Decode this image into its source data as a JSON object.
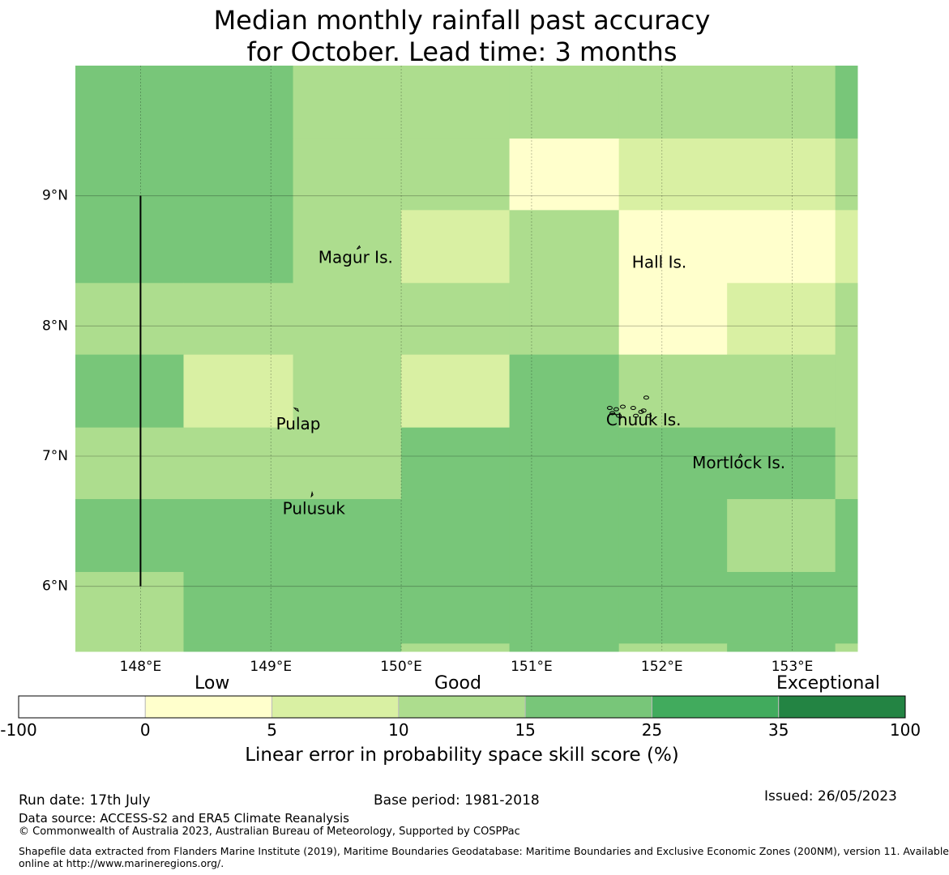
{
  "title_line1": "Median monthly rainfall past accuracy",
  "title_line2": "for October. Lead time: 3 months",
  "lat_ticks": [
    {
      "label": "9°N",
      "value": 9
    },
    {
      "label": "8°N",
      "value": 8
    },
    {
      "label": "7°N",
      "value": 7
    },
    {
      "label": "6°N",
      "value": 6
    }
  ],
  "lon_ticks": [
    {
      "label": "148°E",
      "value": 148
    },
    {
      "label": "149°E",
      "value": 149
    },
    {
      "label": "150°E",
      "value": 150
    },
    {
      "label": "151°E",
      "value": 151
    },
    {
      "label": "152°E",
      "value": 152
    },
    {
      "label": "153°E",
      "value": 153
    }
  ],
  "places": [
    {
      "name": "Magur Is.",
      "lon": 149.65,
      "lat": 8.52
    },
    {
      "name": "Hall Is.",
      "lon": 151.98,
      "lat": 8.48
    },
    {
      "name": "Pulap",
      "lon": 149.21,
      "lat": 7.24
    },
    {
      "name": "Chuuk Is.",
      "lon": 151.86,
      "lat": 7.27
    },
    {
      "name": "Mortlock Is.",
      "lon": 152.59,
      "lat": 6.94
    },
    {
      "name": "Pulusuk",
      "lon": 149.33,
      "lat": 6.59
    }
  ],
  "colors": {
    "bin_m100_0": "#ffffff",
    "bin_0_5": "#ffffcc",
    "bin_5_10": "#d9f0a3",
    "bin_10_15": "#addd8e",
    "bin_15_25": "#78c679",
    "bin_25_35": "#41ab5d",
    "bin_35_100": "#238443"
  },
  "grid": {
    "lon_edges": [
      147.5,
      148.33,
      149.17,
      150.0,
      150.83,
      151.67,
      152.5,
      153.33,
      153.5
    ],
    "lat_edges": [
      10.0,
      9.44,
      8.89,
      8.33,
      7.78,
      7.22,
      6.67,
      6.11,
      5.56,
      5.5
    ],
    "cells": [
      [
        "bin_15_25",
        "bin_15_25",
        "bin_10_15",
        "bin_10_15",
        "bin_10_15",
        "bin_10_15",
        "bin_10_15",
        "bin_15_25"
      ],
      [
        "bin_15_25",
        "bin_15_25",
        "bin_10_15",
        "bin_10_15",
        "bin_0_5",
        "bin_5_10",
        "bin_5_10",
        "bin_10_15"
      ],
      [
        "bin_15_25",
        "bin_15_25",
        "bin_10_15",
        "bin_5_10",
        "bin_10_15",
        "bin_0_5",
        "bin_0_5",
        "bin_5_10"
      ],
      [
        "bin_10_15",
        "bin_10_15",
        "bin_10_15",
        "bin_10_15",
        "bin_10_15",
        "bin_0_5",
        "bin_5_10",
        "bin_10_15"
      ],
      [
        "bin_15_25",
        "bin_5_10",
        "bin_10_15",
        "bin_5_10",
        "bin_15_25",
        "bin_10_15",
        "bin_10_15",
        "bin_10_15"
      ],
      [
        "bin_10_15",
        "bin_10_15",
        "bin_10_15",
        "bin_15_25",
        "bin_15_25",
        "bin_15_25",
        "bin_15_25",
        "bin_10_15"
      ],
      [
        "bin_15_25",
        "bin_15_25",
        "bin_15_25",
        "bin_15_25",
        "bin_15_25",
        "bin_15_25",
        "bin_10_15",
        "bin_15_25"
      ],
      [
        "bin_10_15",
        "bin_15_25",
        "bin_15_25",
        "bin_15_25",
        "bin_15_25",
        "bin_15_25",
        "bin_15_25",
        "bin_15_25"
      ],
      [
        "bin_10_15",
        "bin_15_25",
        "bin_15_25",
        "bin_10_15",
        "bin_15_25",
        "bin_10_15",
        "bin_15_25",
        "bin_10_15"
      ]
    ]
  },
  "boundary_line": {
    "lon": 148.0,
    "lat_from": 6.0,
    "lat_to": 9.0
  },
  "colorbar": {
    "category_labels": [
      "Low",
      "Good",
      "Exceptional"
    ],
    "ticks": [
      "-100",
      "0",
      "5",
      "10",
      "15",
      "25",
      "35",
      "100"
    ],
    "bins": [
      "bin_m100_0",
      "bin_0_5",
      "bin_5_10",
      "bin_10_15",
      "bin_15_25",
      "bin_25_35",
      "bin_35_100"
    ],
    "label": "Linear error in probability space skill score (%)"
  },
  "footer": {
    "run_date": "Run date: 17th July",
    "base_period": "Base period: 1981-2018",
    "issued": "Issued: 26/05/2023",
    "data_source": "Data source: ACCESS-S2 and ERA5 Climate Reanalysis",
    "copyright": "© Commonwealth of Australia 2023, Australian Bureau of Meteorology, Supported by COSPPac",
    "shapefile_line1": "Shapefile data extracted from Flanders Marine Institute (2019), Maritime Boundaries Geodatabase: Maritime Boundaries and Exclusive Economic Zones (200NM), version 11. Available",
    "shapefile_line2": "online at http://www.marineregions.org/."
  }
}
